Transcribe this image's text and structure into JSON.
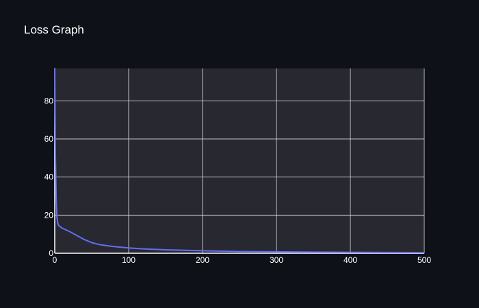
{
  "chart_data": {
    "type": "line",
    "title": "Loss Graph",
    "xlabel": "",
    "ylabel": "",
    "xlim": [
      0,
      500
    ],
    "ylim": [
      0,
      97
    ],
    "x_ticks": [
      "0",
      "100",
      "200",
      "300",
      "400",
      "500"
    ],
    "y_ticks": [
      "0",
      "20",
      "40",
      "60",
      "80"
    ],
    "grid": true,
    "colors": {
      "background": "#0f1118",
      "plot_background": "#282830",
      "grid": "#d9d9d9",
      "line": "#636efa",
      "axis": "#ffffff"
    },
    "series": [
      {
        "x": [
          0,
          1,
          2,
          3,
          4,
          5,
          7,
          10,
          15,
          20,
          30,
          40,
          50,
          60,
          70,
          80,
          100,
          120,
          150,
          200,
          250,
          300,
          350,
          400,
          450,
          500
        ],
        "y": [
          97,
          50,
          28,
          19,
          16,
          14.8,
          14,
          13.2,
          12.3,
          11.4,
          9.3,
          7.2,
          5.6,
          4.6,
          4.0,
          3.5,
          2.8,
          2.3,
          1.8,
          1.3,
          0.9,
          0.75,
          0.6,
          0.5,
          0.4,
          0.35
        ]
      }
    ]
  }
}
